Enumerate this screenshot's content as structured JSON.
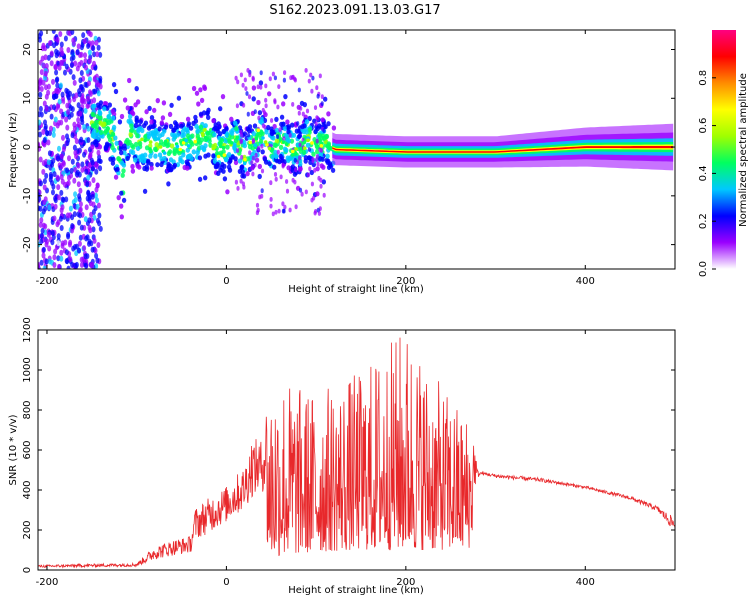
{
  "title": "S162.2023.091.13.03.G17",
  "chart_data": [
    {
      "type": "heatmap",
      "xlabel": "Height of straight line (km)",
      "ylabel": "Frequency (Hz)",
      "xlim": [
        -210,
        500
      ],
      "ylim": [
        -25,
        24
      ],
      "xticks": [
        -200,
        0,
        200,
        400
      ],
      "yticks": [
        -20,
        -10,
        0,
        10,
        20
      ],
      "colorbar": {
        "label": "Normalized spectral amplitude",
        "range": [
          0,
          1
        ],
        "ticks": [
          0.0,
          0.2,
          0.4,
          0.6,
          0.8
        ],
        "tick_labels": [
          "0.0",
          "0.2",
          "0.4",
          "0.6",
          "0.8"
        ],
        "colormap": [
          "#ffffff",
          "#9a00ff",
          "#0000ff",
          "#00c8ff",
          "#00ff60",
          "#a0ff00",
          "#ffff00",
          "#ff8c00",
          "#ff0000",
          "#ff0080"
        ]
      },
      "ridge_frequency": {
        "x": [
          -140,
          -130,
          -120,
          -115,
          -110,
          -100,
          -90,
          -80,
          -70,
          -60,
          -50,
          -40,
          -30,
          -20,
          -10,
          0,
          10,
          20,
          30,
          40,
          50,
          60,
          70,
          80,
          90,
          100,
          110,
          120,
          200,
          300,
          400,
          500
        ],
        "y": [
          5,
          4,
          -2,
          -8,
          3,
          1,
          0,
          0.5,
          0,
          0,
          0,
          1,
          2,
          3,
          -1,
          0,
          2,
          -2,
          1,
          3,
          -1,
          2,
          0,
          -1,
          2,
          0,
          1,
          -0.5,
          -1,
          -1,
          0,
          0
        ]
      }
    },
    {
      "type": "line",
      "xlabel": "Height of straight line (km)",
      "ylabel": "SNR (10 * v/v)",
      "xlim": [
        -210,
        500
      ],
      "ylim": [
        0,
        1200
      ],
      "xticks": [
        -200,
        0,
        200,
        400
      ],
      "yticks": [
        0,
        200,
        400,
        600,
        800,
        1000,
        1200
      ],
      "series": [
        {
          "color": "#e8282b",
          "envelope": {
            "x": [
              -210,
              -100,
              -80,
              -60,
              -40,
              -35,
              -20,
              0,
              20,
              28,
              40,
              48,
              60,
              80,
              100,
              150,
              200,
              230,
              250,
              270,
              275,
              280,
              285,
              300,
              350,
              400,
              450,
              480,
              500
            ],
            "low": [
              5,
              8,
              15,
              30,
              40,
              60,
              90,
              140,
              180,
              200,
              250,
              60,
              70,
              80,
              90,
              100,
              100,
              100,
              100,
              100,
              200,
              440,
              470,
              450,
              430,
              400,
              340,
              280,
              150
            ],
            "high": [
              25,
              35,
              120,
              150,
              170,
              310,
              360,
              420,
              520,
              660,
              650,
              960,
              1000,
              920,
              900,
              1000,
              1230,
              980,
              870,
              780,
              700,
              500,
              490,
              480,
              460,
              420,
              370,
              320,
              260
            ]
          }
        }
      ]
    }
  ]
}
